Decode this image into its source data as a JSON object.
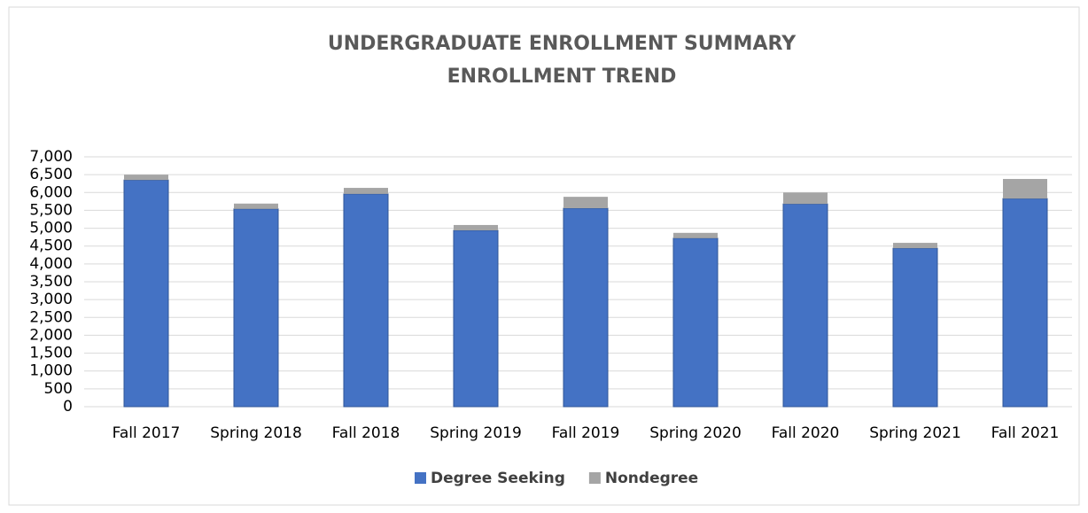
{
  "chart_data": {
    "type": "stacked_bar",
    "title": "UNDERGRADUATE ENROLLMENT SUMMARY",
    "subtitle": "ENROLLMENT TREND",
    "categories": [
      "Fall 2017",
      "Spring 2018",
      "Fall 2018",
      "Spring 2019",
      "Fall 2019",
      "Spring 2020",
      "Fall 2020",
      "Spring 2021",
      "Fall 2021"
    ],
    "series": [
      {
        "name": "Degree Seeking",
        "color": "#4472c4",
        "values": [
          6350,
          5540,
          5960,
          4940,
          5560,
          4720,
          5680,
          4440,
          5830
        ]
      },
      {
        "name": "Nondegree",
        "color": "#a5a5a5",
        "values": [
          150,
          150,
          170,
          150,
          320,
          150,
          320,
          150,
          550
        ]
      }
    ],
    "ylim": [
      0,
      7000
    ],
    "yticks": [
      0,
      500,
      {
        "value": 1000,
        "label": "1,000"
      },
      {
        "value": 1500,
        "label": "1,500"
      },
      {
        "value": 2000,
        "label": "2,000"
      },
      {
        "value": 2500,
        "label": "2,500"
      },
      {
        "value": 3000,
        "label": "3,000"
      },
      {
        "value": 3500,
        "label": "3,500"
      },
      {
        "value": 4000,
        "label": "4,000"
      },
      {
        "value": 4500,
        "label": "4,500"
      },
      {
        "value": 5000,
        "label": "5,000"
      },
      {
        "value": 5500,
        "label": "5,500"
      },
      {
        "value": 6000,
        "label": "6,000"
      },
      {
        "value": 6500,
        "label": "6,500"
      },
      {
        "value": 7000,
        "label": "7,000"
      }
    ],
    "grid": true,
    "legend": "bottom"
  }
}
